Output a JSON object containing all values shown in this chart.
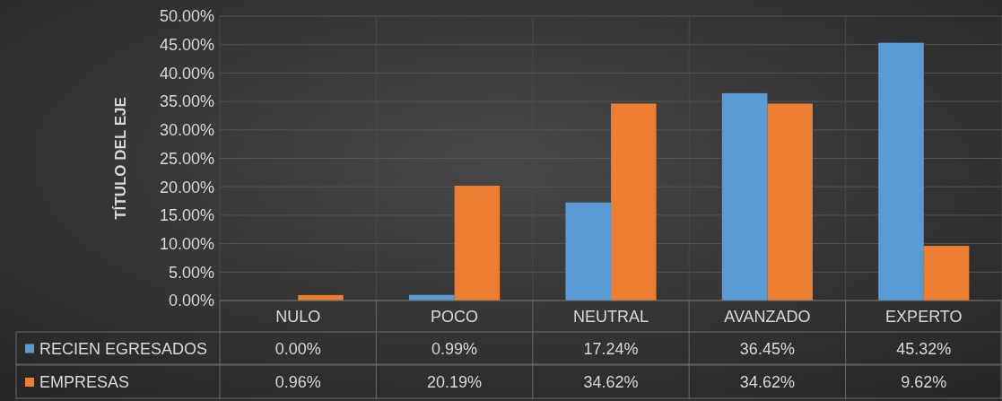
{
  "chart_data": {
    "type": "bar",
    "ylabel": "TÍTULO DEL EJE",
    "categories": [
      "NULO",
      "POCO",
      "NEUTRAL",
      "AVANZADO",
      "EXPERTO"
    ],
    "series": [
      {
        "name": "RECIEN EGRESADOS",
        "color": "#5b9bd5",
        "values": [
          0,
          0.99,
          17.24,
          36.45,
          45.32
        ],
        "value_labels": [
          "0.00%",
          "0.99%",
          "17.24%",
          "36.45%",
          "45.32%"
        ]
      },
      {
        "name": "EMPRESAS",
        "color": "#ed7d31",
        "values": [
          0.96,
          20.19,
          34.62,
          34.62,
          9.62
        ],
        "value_labels": [
          "0.96%",
          "20.19%",
          "34.62%",
          "34.62%",
          "9.62%"
        ]
      }
    ],
    "ylim": [
      0,
      50
    ],
    "yticks": [
      {
        "value": 0,
        "label": "0.00%"
      },
      {
        "value": 5,
        "label": "5.00%"
      },
      {
        "value": 10,
        "label": "10.00%"
      },
      {
        "value": 15,
        "label": "15.00%"
      },
      {
        "value": 20,
        "label": "20.00%"
      },
      {
        "value": 25,
        "label": "25.00%"
      },
      {
        "value": 30,
        "label": "30.00%"
      },
      {
        "value": 35,
        "label": "35.00%"
      },
      {
        "value": 40,
        "label": "40.00%"
      },
      {
        "value": 45,
        "label": "45.00%"
      },
      {
        "value": 50,
        "label": "50.00%"
      }
    ],
    "grid": true,
    "legend": "bottom"
  }
}
